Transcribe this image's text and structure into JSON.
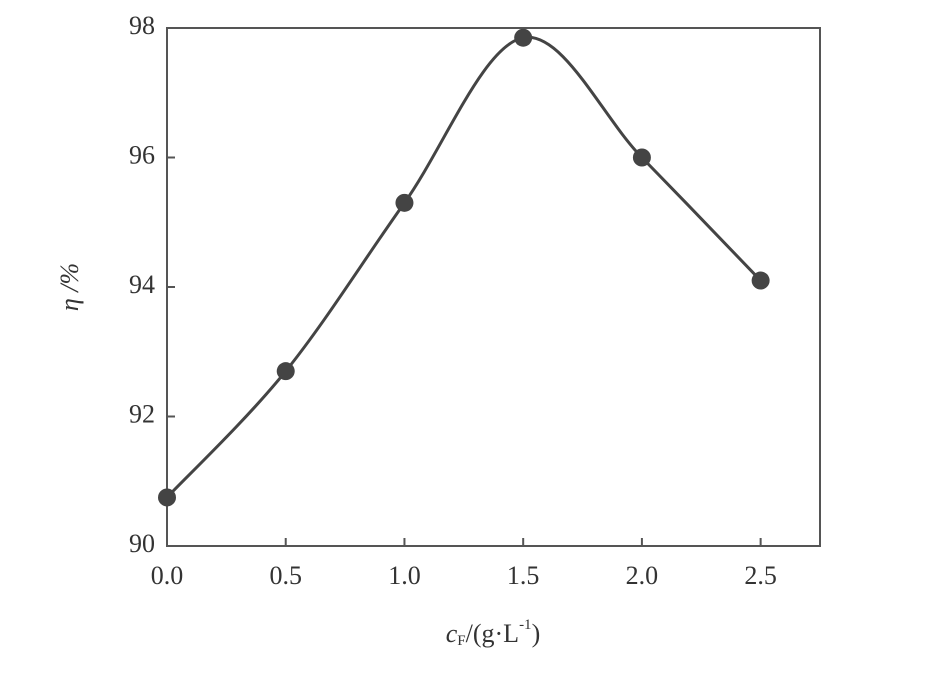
{
  "chart_data": {
    "type": "line",
    "x_label_parts": [
      "c",
      "F",
      "/(g·L",
      "-1",
      ")"
    ],
    "y_label": "η /%",
    "x": [
      0,
      0.5,
      1.0,
      1.5,
      2.0,
      2.5
    ],
    "series": [
      {
        "color": "#444444",
        "values": [
          90.75,
          92.7,
          95.3,
          97.85,
          96.0,
          94.1
        ]
      }
    ],
    "xlim": [
      0,
      2.75
    ],
    "ylim": [
      90,
      98
    ],
    "xticks": [
      {
        "value": 0,
        "label": "0.0"
      },
      0.5,
      {
        "value": 1,
        "label": "1.0"
      },
      1.5,
      {
        "value": 2,
        "label": "2.0"
      },
      2.5
    ],
    "yticks": [
      90,
      92,
      94,
      96,
      98
    ]
  }
}
